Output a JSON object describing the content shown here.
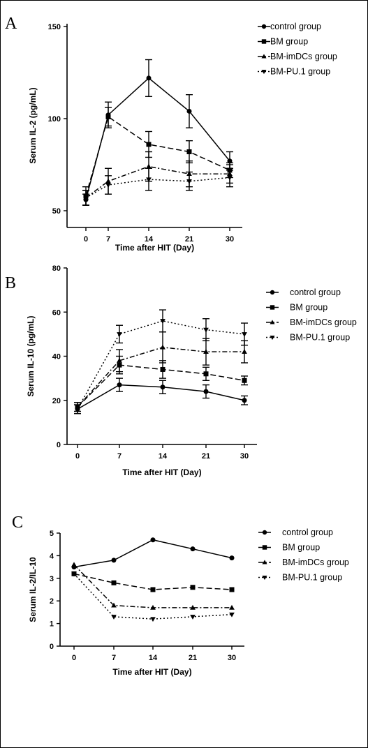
{
  "chart_data": [
    {
      "type": "line",
      "panel": "A",
      "xlabel": "Time after HIT (Day)",
      "ylabel": "Serum IL-2 (pg/mL)",
      "x": [
        0,
        7,
        14,
        21,
        30
      ],
      "ylim": [
        45,
        150
      ],
      "yticks": [
        50,
        100,
        150
      ],
      "legend_position": "top-right",
      "series": [
        {
          "name": "control group",
          "marker": "circle",
          "dash": "solid",
          "values": [
            56,
            102,
            122,
            104,
            77
          ],
          "errors": [
            3,
            7,
            10,
            9,
            5
          ]
        },
        {
          "name": "BM group",
          "marker": "square",
          "dash": "dashed",
          "values": [
            58,
            101,
            86,
            82,
            72
          ],
          "errors": [
            5,
            5,
            7,
            6,
            4
          ]
        },
        {
          "name": "BM-imDCs group",
          "marker": "triangle-up",
          "dash": "dashdot",
          "values": [
            57,
            66,
            74,
            70,
            70
          ],
          "errors": [
            4,
            7,
            8,
            7,
            5
          ]
        },
        {
          "name": "BM-PU.1 group",
          "marker": "triangle-down",
          "dash": "dotted",
          "values": [
            57,
            64,
            67,
            66,
            68
          ],
          "errors": [
            4,
            5,
            6,
            5,
            5
          ]
        }
      ]
    },
    {
      "type": "line",
      "panel": "B",
      "xlabel": "Time after HIT (Day)",
      "ylabel": "Serum IL-10 (pg/mL)",
      "x": [
        0,
        7,
        14,
        21,
        30
      ],
      "ylim": [
        0,
        80
      ],
      "yticks": [
        0,
        20,
        40,
        60,
        80
      ],
      "legend_position": "top-right",
      "series": [
        {
          "name": "control group",
          "marker": "circle",
          "dash": "solid",
          "values": [
            16,
            27,
            26,
            24,
            20
          ],
          "errors": [
            2,
            3,
            3,
            3,
            2
          ]
        },
        {
          "name": "BM group",
          "marker": "square",
          "dash": "dashed",
          "values": [
            17,
            36,
            34,
            32,
            29
          ],
          "errors": [
            2,
            4,
            4,
            3,
            2
          ]
        },
        {
          "name": "BM-imDCs group",
          "marker": "triangle-up",
          "dash": "dashdot",
          "values": [
            17,
            38,
            44,
            42,
            42
          ],
          "errors": [
            2,
            5,
            7,
            6,
            5
          ]
        },
        {
          "name": "BM-PU.1 group",
          "marker": "triangle-down",
          "dash": "dotted",
          "values": [
            16,
            50,
            56,
            52,
            50
          ],
          "errors": [
            2,
            4,
            5,
            5,
            5
          ]
        }
      ]
    },
    {
      "type": "line",
      "panel": "C",
      "xlabel": "Time after HIT (Day)",
      "ylabel": "Serum IL-2/IL-10",
      "x": [
        0,
        7,
        14,
        21,
        30
      ],
      "ylim": [
        0,
        5
      ],
      "yticks": [
        0,
        1,
        2,
        3,
        4,
        5
      ],
      "legend_position": "top-right",
      "series": [
        {
          "name": "control group",
          "marker": "circle",
          "dash": "solid",
          "values": [
            3.5,
            3.8,
            4.7,
            4.3,
            3.9
          ]
        },
        {
          "name": "BM group",
          "marker": "square",
          "dash": "dashed",
          "values": [
            3.2,
            2.8,
            2.5,
            2.6,
            2.5
          ]
        },
        {
          "name": "BM-imDCs group",
          "marker": "triangle-up",
          "dash": "dashdot",
          "values": [
            3.6,
            1.8,
            1.7,
            1.7,
            1.7
          ]
        },
        {
          "name": "BM-PU.1 group",
          "marker": "triangle-down",
          "dash": "dotted",
          "values": [
            3.2,
            1.3,
            1.2,
            1.3,
            1.4
          ]
        }
      ]
    }
  ]
}
